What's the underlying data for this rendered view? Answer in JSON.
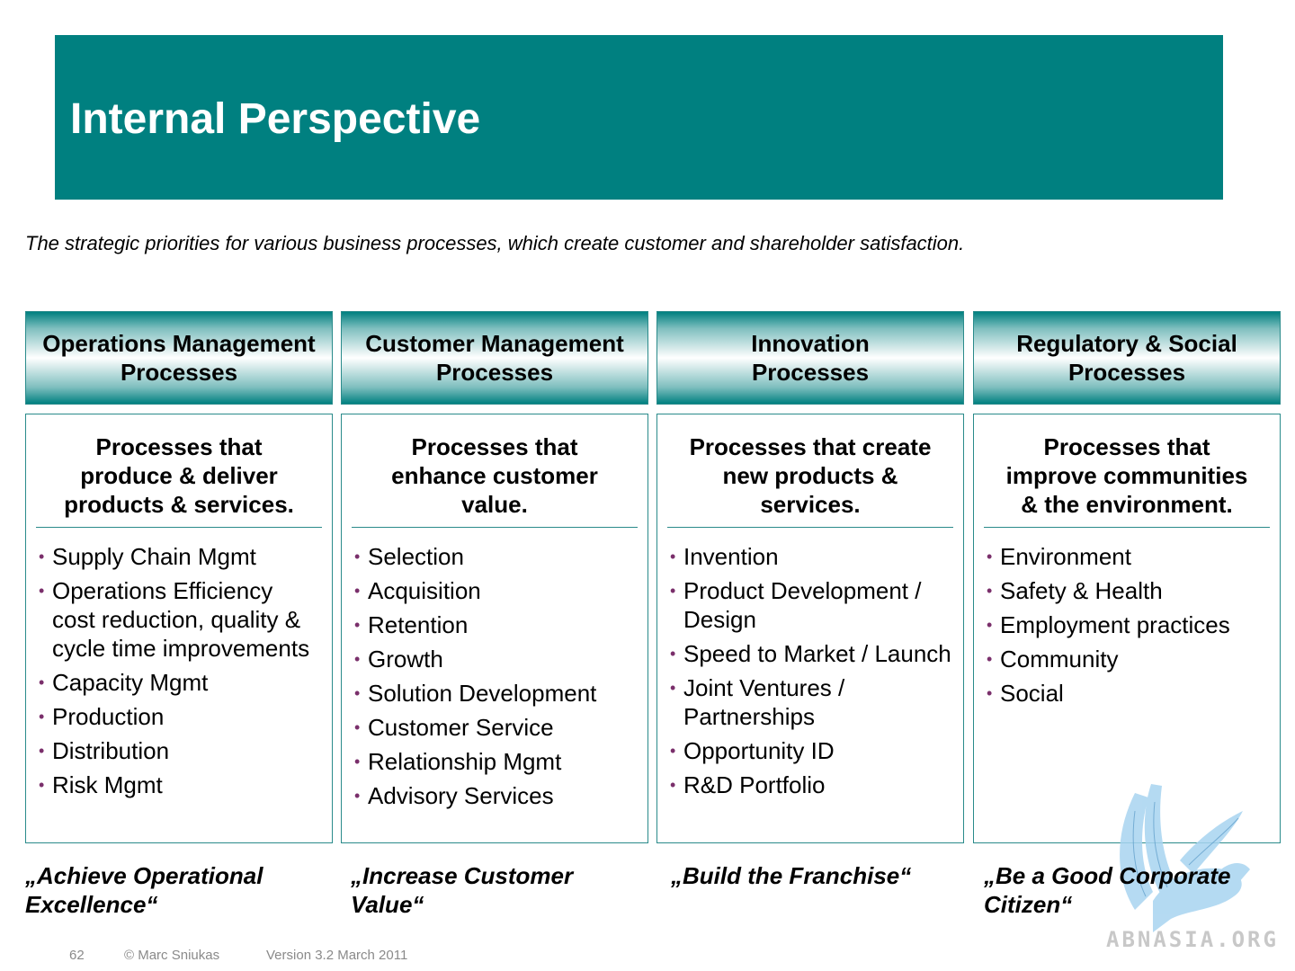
{
  "title": "Internal Perspective",
  "subtitle": "The strategic priorities for various business processes, which create customer and shareholder satisfaction.",
  "columns": [
    {
      "header": "Operations Management\nProcesses",
      "description": "Processes that\nproduce & deliver\nproducts & services.",
      "items": [
        "Supply Chain Mgmt",
        "Operations Efficiency cost reduction, quality & cycle time improvements",
        "Capacity Mgmt",
        "Production",
        "Distribution",
        "Risk Mgmt"
      ],
      "slogan": "„Achieve Operational\nExcellence“"
    },
    {
      "header": "Customer Management\nProcesses",
      "description": "Processes that\nenhance customer\nvalue.",
      "items": [
        "Selection",
        "Acquisition",
        "Retention",
        "Growth",
        "Solution Development",
        "Customer Service",
        "Relationship Mgmt",
        "Advisory Services"
      ],
      "slogan": "„Increase Customer\nValue“"
    },
    {
      "header": "Innovation\nProcesses",
      "description": "Processes that create\nnew products &\nservices.",
      "items": [
        "Invention",
        "Product Development / Design",
        "Speed to Market / Launch",
        "Joint Ventures / Partnerships",
        "Opportunity ID",
        "R&D Portfolio"
      ],
      "slogan": "„Build the Franchise“"
    },
    {
      "header": "Regulatory & Social\nProcesses",
      "description": "Processes that\nimprove communities\n& the environment.",
      "items": [
        "Environment",
        "Safety & Health",
        "Employment practices",
        "Community",
        "Social"
      ],
      "slogan": "„Be a Good Corporate\nCitizen“"
    }
  ],
  "footer": {
    "page_number": "62",
    "copyright": "© Marc Sniukas",
    "version": "Version 3.2 March 2011"
  },
  "watermark": {
    "text": "ABNASIA.ORG",
    "icon": "griffin-logo-icon"
  },
  "colors": {
    "teal": "#008080",
    "border": "#2a8b8b",
    "bullet": "#7a2f6b"
  }
}
